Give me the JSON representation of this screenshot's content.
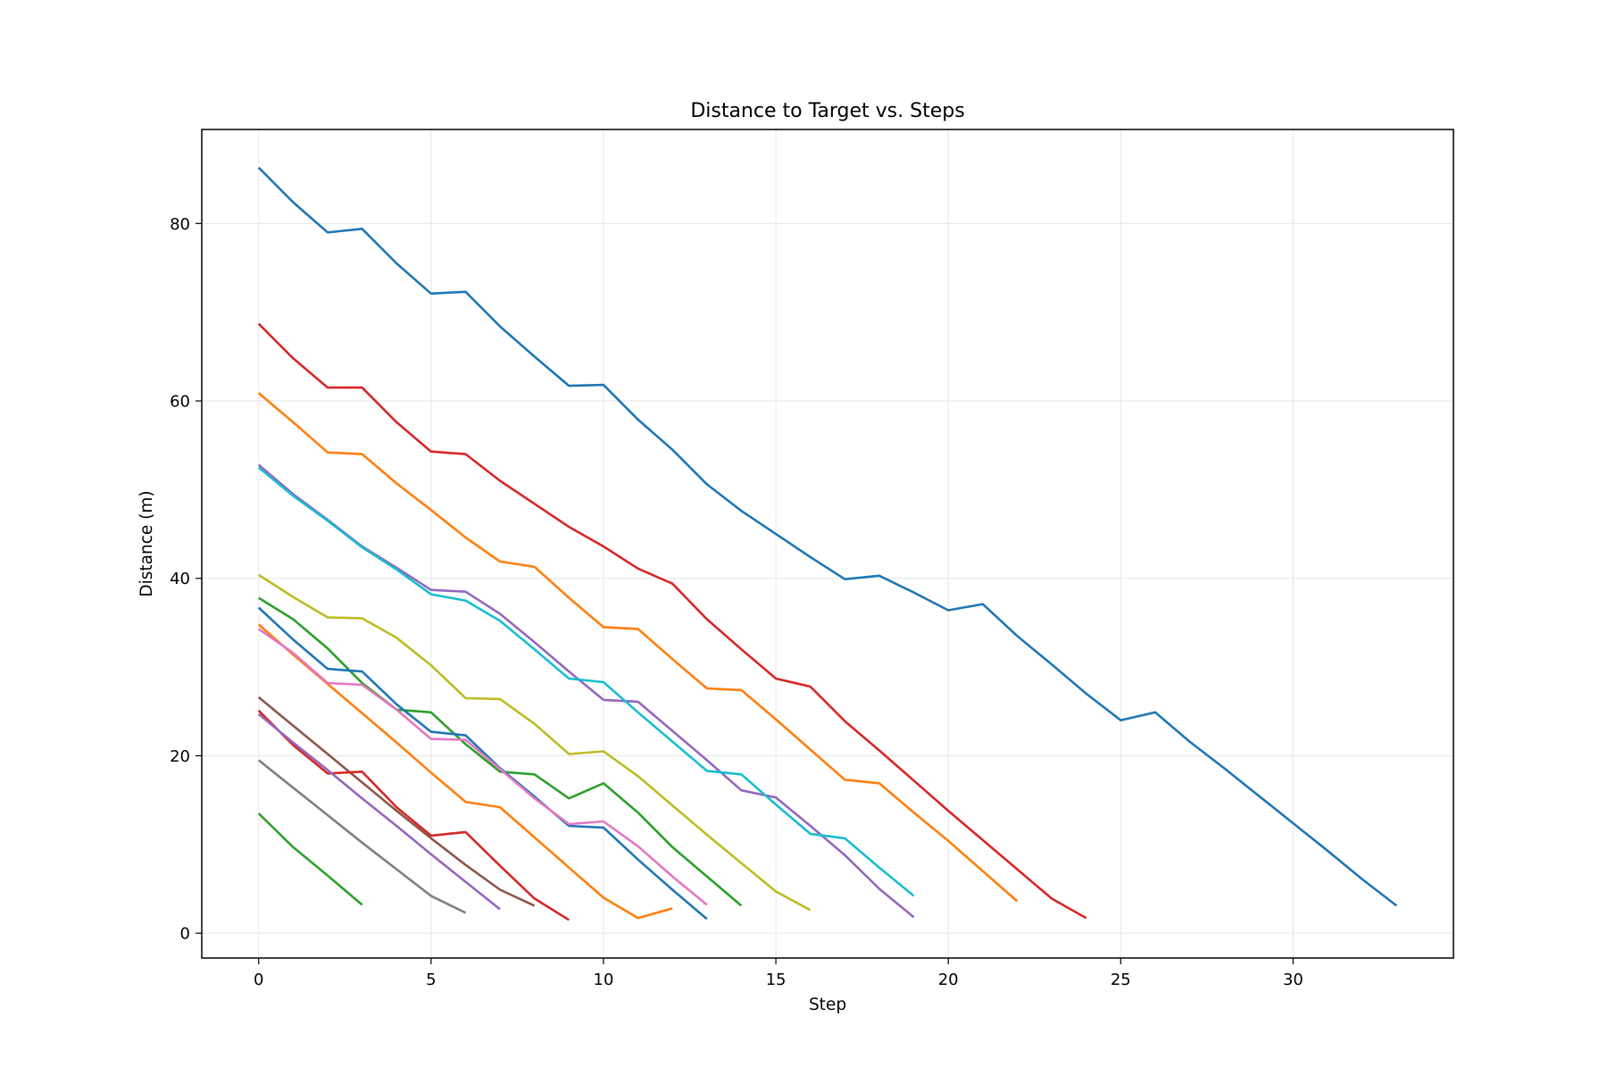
{
  "chart_data": {
    "type": "line",
    "title": "Distance to Target vs. Steps",
    "xlabel": "Step",
    "ylabel": "Distance (m)",
    "xlim": [
      -1.65,
      34.65
    ],
    "ylim": [
      -2.8,
      90.6
    ],
    "xticks": [
      0,
      5,
      10,
      15,
      20,
      25,
      30
    ],
    "yticks": [
      0,
      20,
      40,
      60,
      80
    ],
    "grid": true,
    "legend": "none",
    "series": [
      {
        "color": "#1f77b4",
        "x": [
          0,
          1,
          2,
          3,
          4,
          5,
          6,
          7,
          8,
          9,
          10,
          11,
          12,
          13,
          14,
          15,
          16,
          17,
          18,
          19,
          20,
          21,
          22,
          23,
          24,
          25,
          26,
          27,
          28,
          29,
          30,
          31,
          32,
          33
        ],
        "y": [
          86.3,
          82.4,
          79.0,
          79.4,
          75.5,
          72.1,
          72.3,
          68.4,
          65.0,
          61.7,
          61.8,
          57.9,
          54.5,
          50.6,
          47.6,
          45.0,
          42.4,
          39.9,
          40.3,
          38.4,
          36.4,
          37.1,
          33.5,
          30.3,
          27.0,
          24.0,
          24.9,
          21.6,
          18.6,
          15.5,
          12.4,
          9.3,
          6.1,
          3.1
        ]
      },
      {
        "color": "#d62728",
        "x": [
          0,
          1,
          2,
          3,
          4,
          5,
          6,
          7,
          8,
          9,
          10,
          11,
          12,
          13,
          14,
          15,
          16,
          17,
          18,
          19,
          20,
          21,
          22,
          23,
          24
        ],
        "y": [
          68.7,
          64.8,
          61.5,
          61.5,
          57.6,
          54.3,
          54.0,
          51.0,
          48.4,
          45.8,
          43.6,
          41.1,
          39.4,
          35.4,
          32.0,
          28.7,
          27.8,
          23.9,
          20.6,
          17.2,
          13.8,
          10.5,
          7.2,
          3.9,
          1.7
        ]
      },
      {
        "color": "#ff7f0e",
        "x": [
          0,
          1,
          2,
          3,
          4,
          5,
          6,
          7,
          8,
          9,
          10,
          11,
          12,
          13,
          14,
          15,
          16,
          17,
          18,
          19,
          20,
          21,
          22
        ],
        "y": [
          60.9,
          57.6,
          54.2,
          54.0,
          50.7,
          47.7,
          44.6,
          41.9,
          41.3,
          37.8,
          34.5,
          34.3,
          30.9,
          27.6,
          27.4,
          24.1,
          20.7,
          17.3,
          16.9,
          13.6,
          10.4,
          7.0,
          3.6
        ]
      },
      {
        "color": "#9467bd",
        "x": [
          0,
          1,
          2,
          3,
          4,
          5,
          6,
          7,
          8,
          9,
          10,
          11,
          12,
          13,
          14,
          15,
          16,
          17,
          18,
          19
        ],
        "y": [
          52.8,
          49.5,
          46.6,
          43.6,
          41.2,
          38.7,
          38.5,
          36.0,
          32.8,
          29.5,
          26.3,
          26.1,
          22.8,
          19.5,
          16.1,
          15.3,
          12.1,
          8.8,
          5.0,
          1.8
        ]
      },
      {
        "color": "#17becf",
        "x": [
          0,
          1,
          2,
          3,
          4,
          5,
          6,
          7,
          8,
          9,
          10,
          11,
          12,
          13,
          14,
          15,
          16,
          17,
          18,
          19
        ],
        "y": [
          52.5,
          49.3,
          46.5,
          43.5,
          41.0,
          38.2,
          37.5,
          35.2,
          32.0,
          28.7,
          28.3,
          24.9,
          21.6,
          18.3,
          17.9,
          14.5,
          11.2,
          10.7,
          7.4,
          4.2
        ]
      },
      {
        "color": "#bcbd22",
        "x": [
          0,
          1,
          2,
          3,
          4,
          5,
          6,
          7,
          8,
          9,
          10,
          11,
          12,
          13,
          14,
          15,
          16
        ],
        "y": [
          40.4,
          37.9,
          35.6,
          35.5,
          33.3,
          30.2,
          26.5,
          26.4,
          23.6,
          20.2,
          20.5,
          17.7,
          14.4,
          11.1,
          7.9,
          4.7,
          2.6
        ]
      },
      {
        "color": "#2ca02c",
        "x": [
          0,
          1,
          2,
          3,
          4,
          5,
          6,
          7,
          8,
          9,
          10,
          11,
          12,
          13,
          14
        ],
        "y": [
          37.8,
          35.4,
          32.1,
          28.2,
          25.2,
          24.9,
          21.3,
          18.2,
          17.9,
          15.2,
          16.9,
          13.6,
          9.7,
          6.4,
          3.1
        ]
      },
      {
        "color": "#1f77b4",
        "x": [
          0,
          1,
          2,
          3,
          4,
          5,
          6,
          7,
          8,
          9,
          10,
          11,
          12,
          13
        ],
        "y": [
          36.7,
          33.1,
          29.8,
          29.5,
          25.8,
          22.7,
          22.3,
          18.6,
          15.4,
          12.1,
          11.9,
          8.3,
          4.9,
          1.6
        ]
      },
      {
        "color": "#ff7f0e",
        "x": [
          0,
          1,
          2,
          3,
          4,
          5,
          6,
          7,
          8,
          9,
          10,
          11,
          12
        ],
        "y": [
          34.8,
          31.4,
          28.1,
          24.8,
          21.5,
          18.1,
          14.8,
          14.2,
          10.8,
          7.4,
          4.0,
          1.7,
          2.8
        ]
      },
      {
        "color": "#e377c2",
        "x": [
          0,
          1,
          2,
          3,
          4,
          5,
          6,
          7,
          8,
          9,
          10,
          11,
          12,
          13
        ],
        "y": [
          34.3,
          31.6,
          28.2,
          28.0,
          25.2,
          21.9,
          21.8,
          18.5,
          15.2,
          12.3,
          12.6,
          9.8,
          6.4,
          3.2
        ]
      },
      {
        "color": "#8c564b",
        "x": [
          0,
          1,
          2,
          3,
          4,
          5,
          6,
          7,
          8
        ],
        "y": [
          26.6,
          23.4,
          20.2,
          17.0,
          13.8,
          10.7,
          7.7,
          4.9,
          3.1
        ]
      },
      {
        "color": "#d62728",
        "x": [
          0,
          1,
          2,
          3,
          4,
          5,
          6,
          7,
          8,
          9
        ],
        "y": [
          25.1,
          21.2,
          18.0,
          18.2,
          14.2,
          11.0,
          11.4,
          7.6,
          3.9,
          1.5
        ]
      },
      {
        "color": "#9467bd",
        "x": [
          0,
          1,
          2,
          3,
          4,
          5,
          6,
          7
        ],
        "y": [
          24.7,
          21.5,
          18.4,
          15.2,
          12.1,
          8.9,
          5.8,
          2.7
        ]
      },
      {
        "color": "#7f7f7f",
        "x": [
          0,
          1,
          2,
          3,
          4,
          5,
          6
        ],
        "y": [
          19.5,
          16.4,
          13.3,
          10.2,
          7.2,
          4.2,
          2.3
        ]
      },
      {
        "color": "#2ca02c",
        "x": [
          0,
          1,
          2,
          3
        ],
        "y": [
          13.5,
          9.7,
          6.5,
          3.2
        ]
      }
    ]
  }
}
